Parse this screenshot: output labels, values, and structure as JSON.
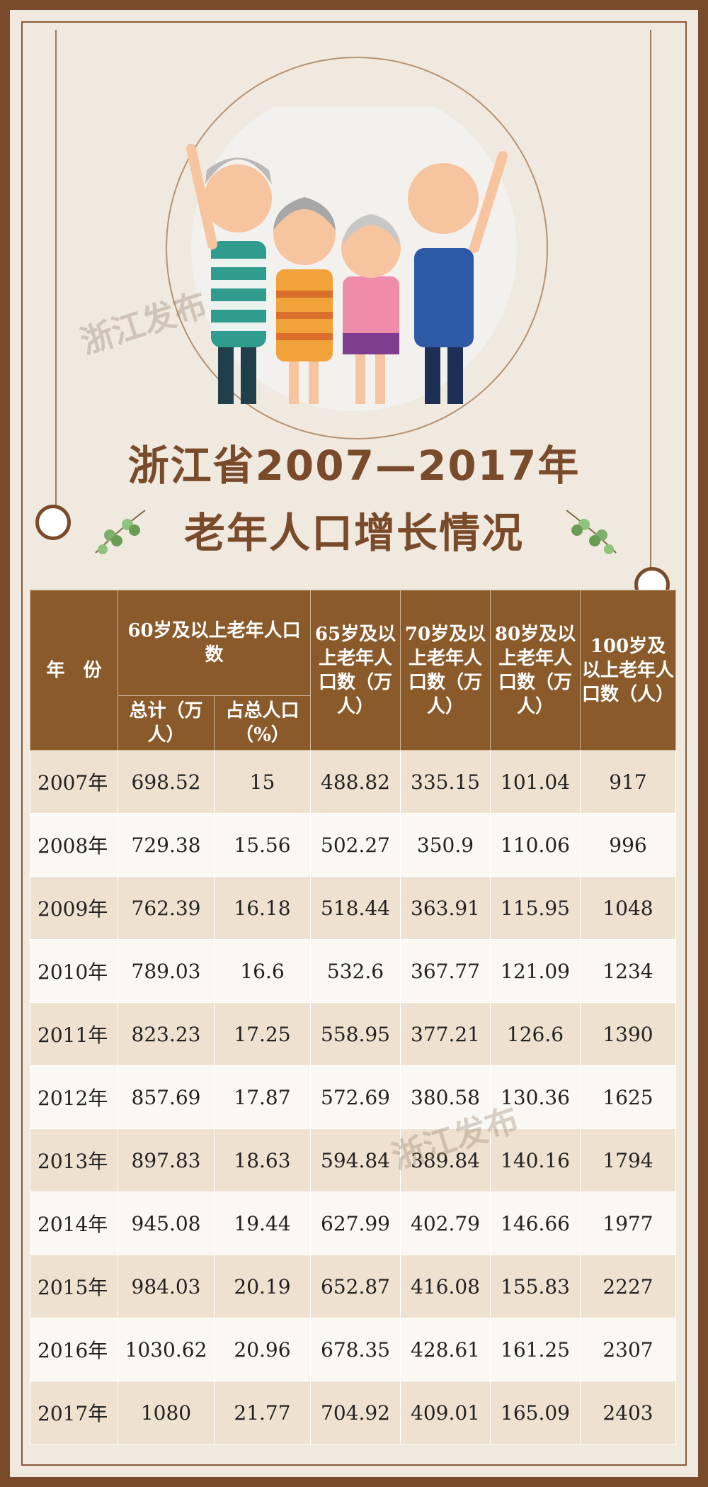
{
  "title": {
    "line1": "浙江省2007—2017年",
    "line2": "老年人口增长情况"
  },
  "watermark": "浙江发布",
  "table": {
    "headers": {
      "year": "年　份",
      "group60": "60岁及以上老年人口数",
      "total": "总计（万人）",
      "percent": "占总人口（%）",
      "age65": "65岁及以上老年人口数（万人）",
      "age70": "70岁及以上老年人口数（万人）",
      "age80": "80岁及以上老年人口数（万人）",
      "age100": "100岁及以上老年人口数（人）"
    },
    "rows": [
      [
        "2007年",
        "698.52",
        "15",
        "488.82",
        "335.15",
        "101.04",
        "917"
      ],
      [
        "2008年",
        "729.38",
        "15.56",
        "502.27",
        "350.9",
        "110.06",
        "996"
      ],
      [
        "2009年",
        "762.39",
        "16.18",
        "518.44",
        "363.91",
        "115.95",
        "1048"
      ],
      [
        "2010年",
        "789.03",
        "16.6",
        "532.6",
        "367.77",
        "121.09",
        "1234"
      ],
      [
        "2011年",
        "823.23",
        "17.25",
        "558.95",
        "377.21",
        "126.6",
        "1390"
      ],
      [
        "2012年",
        "857.69",
        "17.87",
        "572.69",
        "380.58",
        "130.36",
        "1625"
      ],
      [
        "2013年",
        "897.83",
        "18.63",
        "594.84",
        "389.84",
        "140.16",
        "1794"
      ],
      [
        "2014年",
        "945.08",
        "19.44",
        "627.99",
        "402.79",
        "146.66",
        "1977"
      ],
      [
        "2015年",
        "984.03",
        "20.19",
        "652.87",
        "416.08",
        "155.83",
        "2227"
      ],
      [
        "2016年",
        "1030.62",
        "20.96",
        "678.35",
        "428.61",
        "161.25",
        "2307"
      ],
      [
        "2017年",
        "1080",
        "21.77",
        "704.92",
        "409.01",
        "165.09",
        "2403"
      ]
    ]
  }
}
